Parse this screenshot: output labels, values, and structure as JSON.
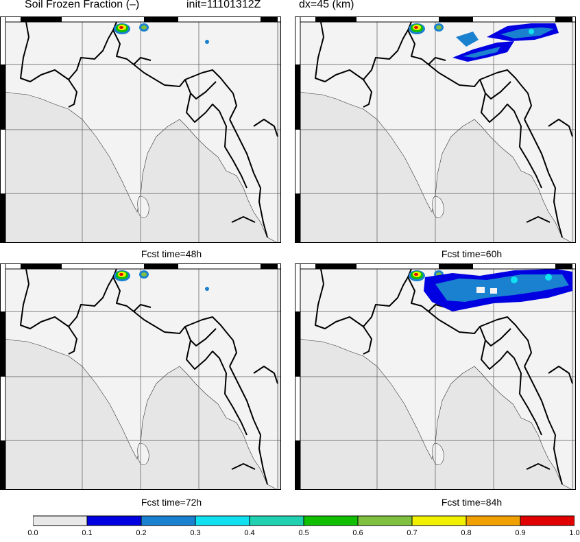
{
  "title": {
    "variable": "Soil Frozen Fraction (–)",
    "init": "init=11101312Z",
    "dx": "dx=45 (km)"
  },
  "panels": [
    {
      "caption": "Fcst time=48h",
      "extent": "small"
    },
    {
      "caption": "Fcst time=60h",
      "extent": "medium"
    },
    {
      "caption": "Fcst time=72h",
      "extent": "small"
    },
    {
      "caption": "Fcst time=84h",
      "extent": "large"
    }
  ],
  "colorbar": {
    "labels": [
      "0.0",
      "0.1",
      "0.2",
      "0.3",
      "0.4",
      "0.5",
      "0.6",
      "0.7",
      "0.8",
      "0.9",
      "1.0"
    ],
    "colors": [
      "#e8e8e8",
      "#0000e0",
      "#1a80d0",
      "#10e0f0",
      "#20d0b0",
      "#10c000",
      "#80c040",
      "#f0f000",
      "#f0a000",
      "#e00000"
    ]
  },
  "colors": {
    "ocean": "#e6e6e6",
    "land": "#f3f3f3",
    "border": "#000000"
  }
}
